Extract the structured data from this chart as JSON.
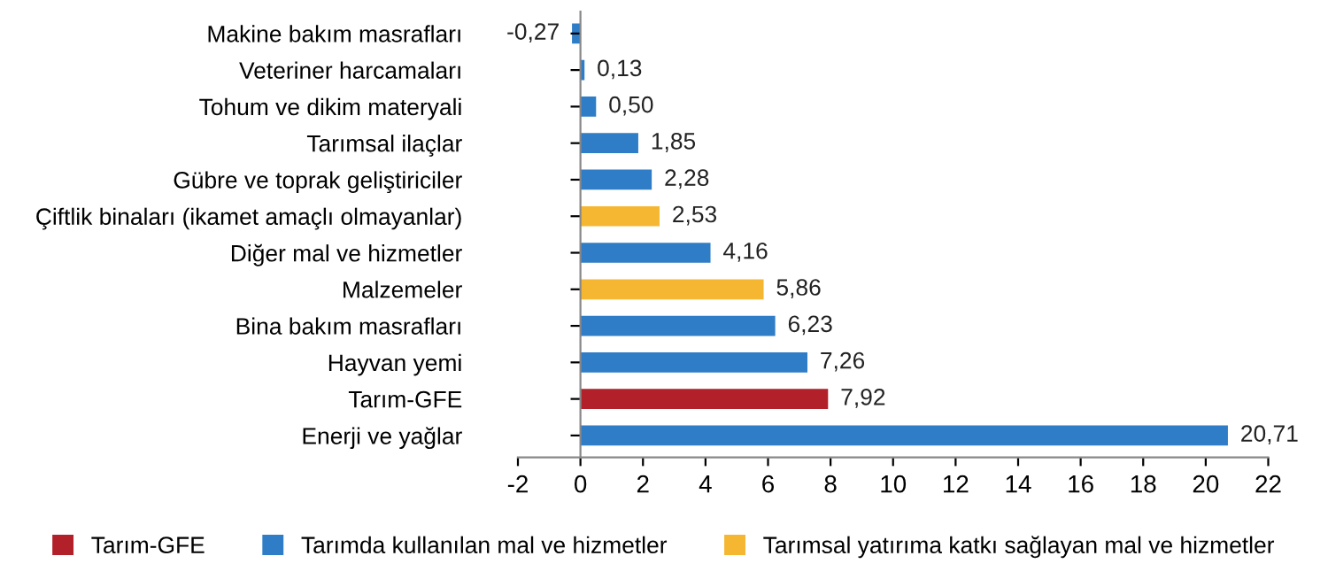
{
  "chart_data": {
    "type": "bar",
    "orientation": "horizontal",
    "categories": [
      "Makine bakım masrafları",
      "Veteriner harcamaları",
      "Tohum ve dikim materyali",
      "Tarımsal ilaçlar",
      "Gübre ve toprak geliştiriciler",
      "Çiftlik binaları (ikamet amaçlı olmayanlar)",
      "Diğer mal ve hizmetler",
      "Malzemeler",
      "Bina bakım masrafları",
      "Hayvan yemi",
      "Tarım-GFE",
      "Enerji ve yağlar"
    ],
    "series": [
      {
        "name": "Tarım-GFE",
        "color": "#b2202a",
        "values": [
          null,
          null,
          null,
          null,
          null,
          null,
          null,
          null,
          null,
          null,
          7.92,
          null
        ],
        "value_labels": [
          null,
          null,
          null,
          null,
          null,
          null,
          null,
          null,
          null,
          null,
          "7,92",
          null
        ]
      },
      {
        "name": "Tarımda kullanılan mal ve hizmetler",
        "color": "#2f7dc6",
        "values": [
          -0.27,
          0.13,
          0.5,
          1.85,
          2.28,
          null,
          4.16,
          null,
          6.23,
          7.26,
          null,
          20.71
        ],
        "value_labels": [
          "-0,27",
          "0,13",
          "0,50",
          "1,85",
          "2,28",
          null,
          "4,16",
          null,
          "6,23",
          "7,26",
          null,
          "20,71"
        ]
      },
      {
        "name": "Tarımsal yatırıma katkı sağlayan mal ve hizmetler",
        "color": "#f5b731",
        "values": [
          null,
          null,
          null,
          null,
          null,
          2.53,
          null,
          5.86,
          null,
          null,
          null,
          null
        ],
        "value_labels": [
          null,
          null,
          null,
          null,
          null,
          "2,53",
          null,
          "5,86",
          null,
          null,
          null,
          null
        ]
      }
    ],
    "xlim": [
      -2,
      22
    ],
    "xticks": [
      -2,
      0,
      2,
      4,
      6,
      8,
      10,
      12,
      14,
      16,
      18,
      20,
      22
    ],
    "legend": "bottom"
  }
}
